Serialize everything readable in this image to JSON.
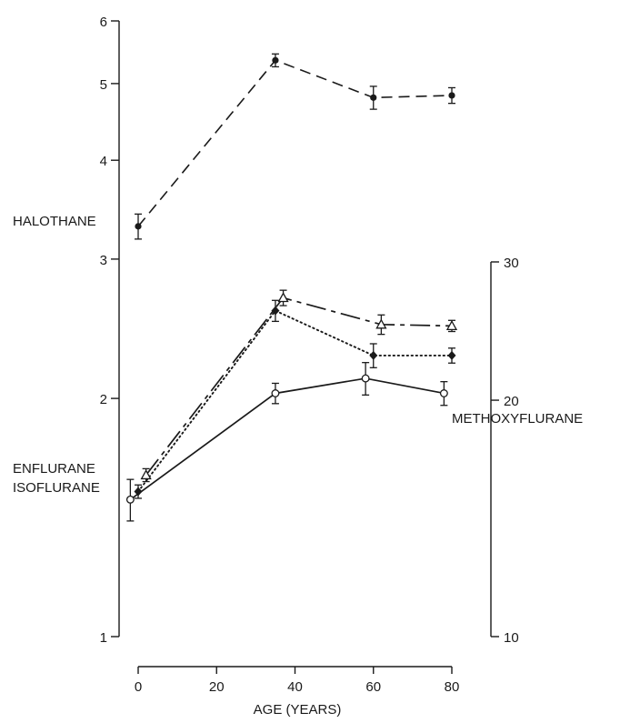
{
  "chart_data": {
    "type": "line",
    "xlabel": "AGE (YEARS)",
    "x_ticks": [
      0,
      20,
      40,
      60,
      80
    ],
    "xlim": [
      0,
      80
    ],
    "left_axis": {
      "scale": "log",
      "ylim": [
        1,
        6
      ],
      "ticks": [
        1,
        2,
        3,
        4,
        5,
        6
      ]
    },
    "right_axis": {
      "scale": "log",
      "ylim": [
        10,
        30
      ],
      "ticks": [
        10,
        20,
        30
      ]
    },
    "series": [
      {
        "name": "HALOTHANE",
        "axis": "left",
        "style": "dashed",
        "marker": "filled-circle",
        "points": [
          {
            "x": 0,
            "y": 3.3,
            "err": 0.12
          },
          {
            "x": 35,
            "y": 5.35,
            "err": 0.1
          },
          {
            "x": 60,
            "y": 4.8,
            "err": 0.16
          },
          {
            "x": 80,
            "y": 4.83,
            "err": 0.11
          }
        ]
      },
      {
        "name": "ENFLURANE",
        "axis": "left",
        "style": "long-dash",
        "marker": "open-triangle",
        "points": [
          {
            "x": 2,
            "y": 1.6,
            "err": 0.03
          },
          {
            "x": 37,
            "y": 2.68,
            "err": 0.06
          },
          {
            "x": 62,
            "y": 2.48,
            "err": 0.07
          },
          {
            "x": 80,
            "y": 2.47,
            "err": 0.04
          }
        ]
      },
      {
        "name": "METHOXYFLURANE",
        "axis": "right",
        "style": "dotted",
        "marker": "filled-diamond",
        "points": [
          {
            "x": 0,
            "y": 15.3,
            "err": 0.3
          },
          {
            "x": 35,
            "y": 26.0,
            "err": 0.8
          },
          {
            "x": 60,
            "y": 22.8,
            "err": 0.8
          },
          {
            "x": 80,
            "y": 22.8,
            "err": 0.5
          }
        ]
      },
      {
        "name": "ISOFLURANE",
        "axis": "left",
        "style": "solid",
        "marker": "open-circle",
        "points": [
          {
            "x": -2,
            "y": 1.49,
            "err": 0.09
          },
          {
            "x": 35,
            "y": 2.03,
            "err": 0.06
          },
          {
            "x": 58,
            "y": 2.12,
            "err": 0.1
          },
          {
            "x": 78,
            "y": 2.03,
            "err": 0.07
          }
        ]
      }
    ]
  }
}
